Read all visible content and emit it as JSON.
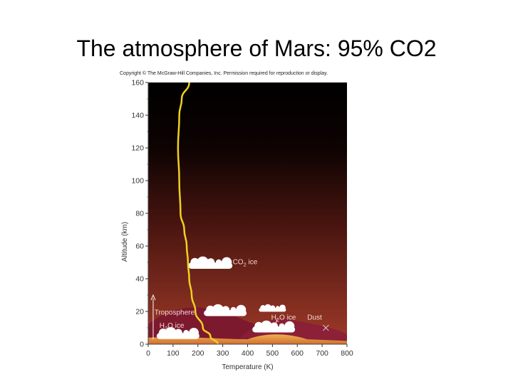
{
  "slide": {
    "title": "The atmosphere of Mars: 95% CO2"
  },
  "copyright": "Copyright © The McGraw-Hill Companies, Inc. Permission required for reproduction or display.",
  "colors": {
    "sky_top": "#000000",
    "sky_mid": "#4a1510",
    "sky_low": "#a03a28",
    "curve": "#f0d020",
    "ground": "#e89a3a"
  },
  "chart_data": {
    "type": "line",
    "title": "",
    "xlabel": "Temperature (K)",
    "ylabel": "Altitude (km)",
    "xlim": [
      0,
      800
    ],
    "ylim": [
      0,
      160
    ],
    "x_ticks": [
      0,
      100,
      200,
      300,
      400,
      500,
      600,
      700,
      800
    ],
    "y_ticks": [
      0,
      20,
      40,
      60,
      80,
      100,
      120,
      140,
      160
    ],
    "series": [
      {
        "x": [
          280,
          250,
          220,
          190,
          175,
          165,
          160,
          155,
          145,
          130,
          125,
          120,
          125,
          135,
          165
        ],
        "y": [
          0,
          5,
          10,
          20,
          30,
          40,
          50,
          60,
          70,
          80,
          100,
          120,
          140,
          150,
          160
        ]
      }
    ],
    "annotations": [
      {
        "id": "co2",
        "text_main": "CO",
        "text_sub": "2",
        "text_tail": " ice",
        "x": 340,
        "y": 49
      },
      {
        "id": "h2o-high",
        "text_main": "H",
        "text_sub": "2",
        "text_tail": "O ice",
        "x": 495,
        "y": 15
      },
      {
        "id": "dust",
        "text_main": "Dust",
        "text_sub": "",
        "text_tail": "",
        "x": 640,
        "y": 15
      },
      {
        "id": "troposphere",
        "text_main": "Troposphere",
        "text_sub": "",
        "text_tail": "",
        "x": 25,
        "y": 18
      },
      {
        "id": "h2o-low",
        "text_main": "H",
        "text_sub": "2",
        "text_tail": "O ice",
        "x": 45,
        "y": 10
      }
    ]
  }
}
